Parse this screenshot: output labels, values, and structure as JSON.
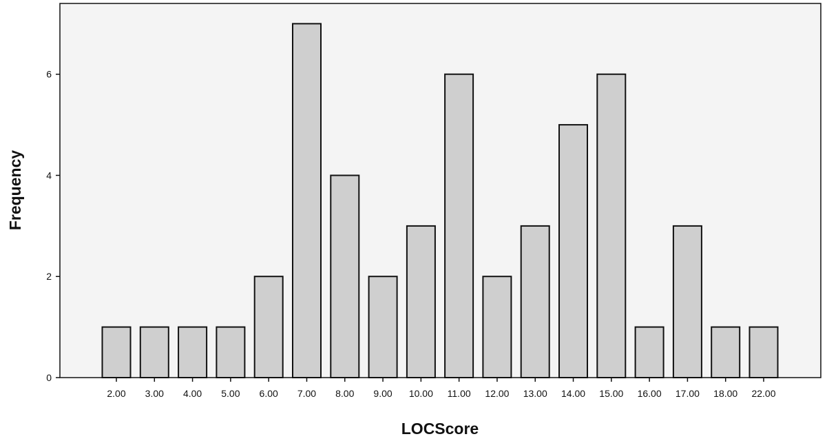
{
  "chart_data": {
    "type": "bar",
    "title": "",
    "xlabel": "LOCScore",
    "ylabel": "Frequency",
    "categories": [
      "2.00",
      "3.00",
      "4.00",
      "5.00",
      "6.00",
      "7.00",
      "8.00",
      "9.00",
      "10.00",
      "11.00",
      "12.00",
      "13.00",
      "14.00",
      "15.00",
      "16.00",
      "17.00",
      "18.00",
      "22.00"
    ],
    "values": [
      1,
      1,
      1,
      1,
      2,
      7,
      4,
      2,
      3,
      6,
      2,
      3,
      5,
      6,
      1,
      3,
      1,
      1
    ],
    "ylim": [
      0,
      7.4
    ],
    "yticks": [
      0,
      2,
      4,
      6
    ],
    "grid": false,
    "legend": "none",
    "colors": {
      "bar_fill": "#cfcfcf",
      "bar_stroke": "#111111",
      "background": "#f4f4f4"
    }
  }
}
